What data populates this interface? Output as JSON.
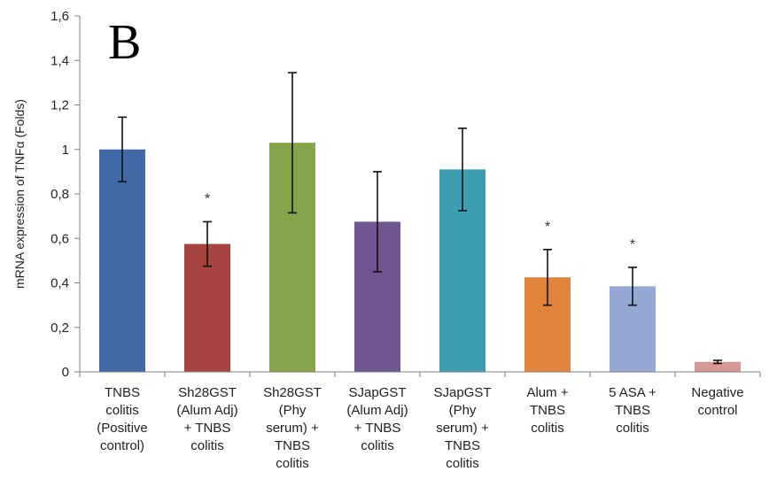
{
  "panel_letter": "B",
  "chart_data": {
    "type": "bar",
    "ylabel": "mRNA expression of TNFα (Folds)",
    "xlabel": "",
    "ylim": [
      0,
      1.6
    ],
    "ytick_values": [
      0,
      0.2,
      0.4,
      0.6,
      0.8,
      1,
      1.2,
      1.4,
      1.6
    ],
    "ytick_labels": [
      "0",
      "0,2",
      "0,4",
      "0,6",
      "0,8",
      "1",
      "1,2",
      "1,4",
      "1,6"
    ],
    "grid": false,
    "categories": [
      [
        "TNBS",
        "colitis",
        "(Positive",
        "control)"
      ],
      [
        "Sh28GST",
        "(Alum Adj)",
        "+ TNBS",
        "colitis"
      ],
      [
        "Sh28GST",
        "(Phy",
        "serum) +",
        "TNBS",
        "colitis"
      ],
      [
        "SJapGST",
        "(Alum Adj)",
        "+ TNBS",
        "colitis"
      ],
      [
        "SJapGST",
        "(Phy",
        "serum) +",
        "TNBS",
        "colitis"
      ],
      [
        "Alum +",
        "TNBS",
        "colitis"
      ],
      [
        "5 ASA +",
        "TNBS",
        "colitis"
      ],
      [
        "Negative",
        "control"
      ]
    ],
    "values": [
      1.0,
      0.575,
      1.03,
      0.675,
      0.91,
      0.425,
      0.385,
      0.045
    ],
    "errors": [
      0.145,
      0.1,
      0.315,
      0.225,
      0.185,
      0.125,
      0.085,
      0.007
    ],
    "significance": [
      "",
      "*",
      "",
      "",
      "",
      "*",
      "*",
      ""
    ],
    "colors": [
      "#4169a8",
      "#a84440",
      "#86a54b",
      "#6e5591",
      "#3d9db3",
      "#e0843a",
      "#93a9d3",
      "#d99896"
    ]
  }
}
